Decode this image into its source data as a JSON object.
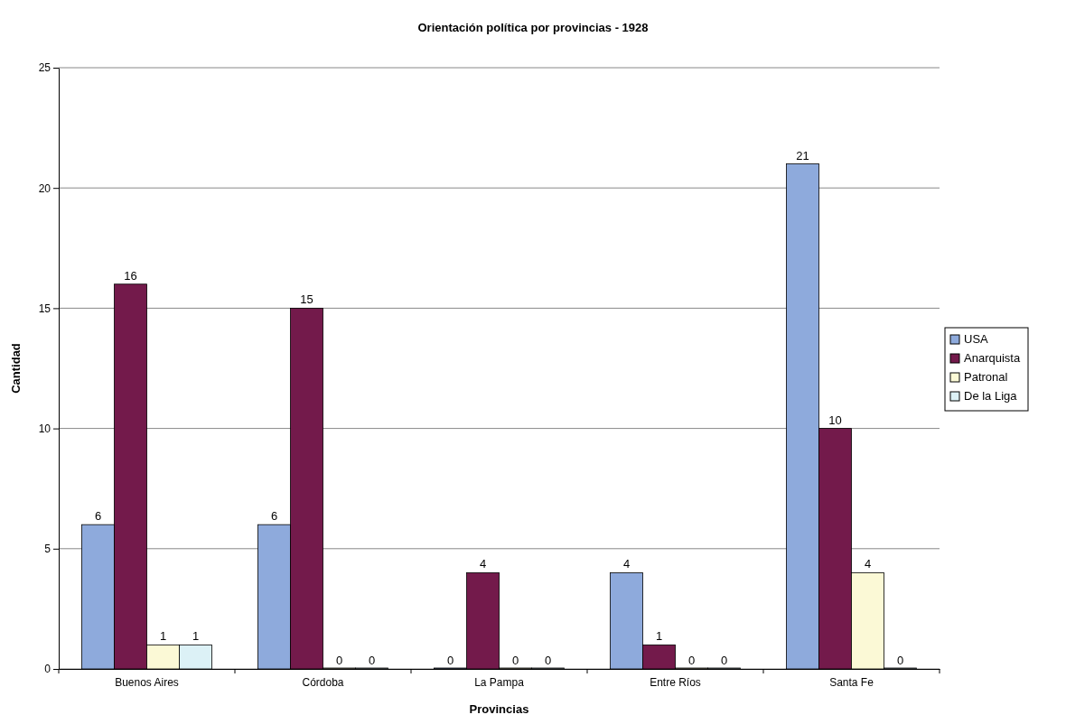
{
  "chart_data": {
    "type": "bar",
    "title": "Orientación política por provincias - 1928",
    "xlabel": "Provincias",
    "ylabel": "Cantidad",
    "categories": [
      "Buenos Aires",
      "Córdoba",
      "La Pampa",
      "Entre Ríos",
      "Santa Fe"
    ],
    "series": [
      {
        "name": "USA",
        "color": "#8eaadc",
        "values": [
          6,
          6,
          0,
          4,
          21
        ]
      },
      {
        "name": "Anarquista",
        "color": "#731a4b",
        "values": [
          16,
          15,
          4,
          1,
          10
        ]
      },
      {
        "name": "Patronal",
        "color": "#fbf9d6",
        "values": [
          1,
          0,
          0,
          0,
          4
        ]
      },
      {
        "name": "De la Liga",
        "color": "#dcf1f6",
        "values": [
          1,
          0,
          0,
          0,
          0
        ]
      }
    ],
    "ylim": [
      0,
      25
    ],
    "yticks": [
      0,
      5,
      10,
      15,
      20,
      25
    ],
    "grid": "y",
    "legend": "right",
    "data_labels": true
  }
}
